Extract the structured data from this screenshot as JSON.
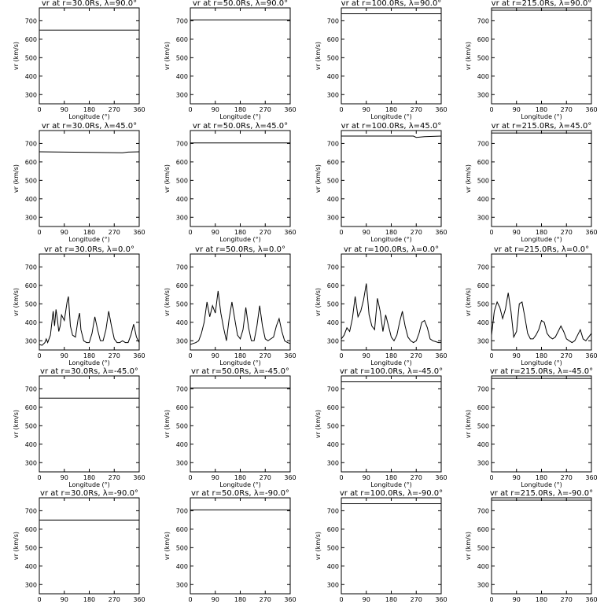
{
  "chart_data": {
    "type": "line",
    "rows": 5,
    "cols": 4,
    "common": {
      "xlabel": "Longitude (°)",
      "ylabel": "vr (km/s)",
      "xlim": [
        0,
        360
      ],
      "ylim": [
        250,
        770
      ],
      "xticks": [
        0,
        90,
        180,
        270,
        360
      ],
      "xtick_labels": [
        "0",
        "90",
        "180",
        "270",
        "360"
      ],
      "yticks": [
        300,
        400,
        500,
        600,
        700
      ],
      "ytick_labels": [
        "300",
        "400",
        "500",
        "600",
        "700"
      ],
      "grid": false,
      "line_color": "#000000"
    },
    "panels": [
      {
        "title": "vr at r=30.0Rs, λ=90.0°",
        "x": [
          0,
          360
        ],
        "y": [
          650,
          650
        ]
      },
      {
        "title": "vr at r=50.0Rs, λ=90.0°",
        "x": [
          0,
          360
        ],
        "y": [
          705,
          705
        ]
      },
      {
        "title": "vr at r=100.0Rs, λ=90.0°",
        "x": [
          0,
          360
        ],
        "y": [
          738,
          738
        ]
      },
      {
        "title": "vr at r=215.0Rs, λ=90.0°",
        "x": [
          0,
          360
        ],
        "y": [
          757,
          757
        ]
      },
      {
        "title": "vr at r=30.0Rs, λ=45.0°",
        "x": [
          0,
          300,
          320,
          360
        ],
        "y": [
          655,
          650,
          653,
          655
        ]
      },
      {
        "title": "vr at r=50.0Rs, λ=45.0°",
        "x": [
          0,
          360
        ],
        "y": [
          703,
          703
        ]
      },
      {
        "title": "vr at r=100.0Rs, λ=45.0°",
        "x": [
          0,
          260,
          270,
          300,
          360
        ],
        "y": [
          740,
          740,
          733,
          737,
          740
        ]
      },
      {
        "title": "vr at r=215.0Rs, λ=45.0°",
        "x": [
          0,
          360
        ],
        "y": [
          757,
          757
        ]
      },
      {
        "title": "vr at r=30.0Rs, λ=0.0°",
        "x": [
          0,
          10,
          20,
          25,
          30,
          40,
          50,
          55,
          60,
          65,
          70,
          75,
          80,
          90,
          100,
          105,
          112,
          120,
          130,
          140,
          145,
          150,
          160,
          170,
          180,
          190,
          200,
          210,
          220,
          230,
          240,
          250,
          260,
          270,
          280,
          290,
          300,
          310,
          320,
          330,
          340,
          350,
          360
        ],
        "y": [
          280,
          275,
          290,
          310,
          290,
          330,
          460,
          380,
          470,
          420,
          350,
          380,
          440,
          410,
          510,
          540,
          380,
          330,
          320,
          420,
          450,
          360,
          300,
          290,
          290,
          340,
          430,
          360,
          300,
          300,
          360,
          460,
          380,
          310,
          290,
          290,
          300,
          290,
          290,
          330,
          390,
          320,
          290
        ]
      },
      {
        "title": "vr at r=50.0Rs, λ=0.0°",
        "x": [
          0,
          10,
          20,
          30,
          40,
          50,
          60,
          70,
          80,
          90,
          100,
          110,
          120,
          130,
          140,
          150,
          160,
          170,
          180,
          190,
          200,
          210,
          220,
          230,
          240,
          250,
          260,
          270,
          280,
          290,
          300,
          310,
          320,
          330,
          340,
          350,
          360
        ],
        "y": [
          280,
          285,
          290,
          300,
          340,
          400,
          510,
          430,
          490,
          450,
          570,
          450,
          370,
          300,
          420,
          510,
          420,
          330,
          310,
          360,
          480,
          370,
          300,
          300,
          380,
          490,
          380,
          310,
          300,
          310,
          320,
          380,
          420,
          350,
          300,
          290,
          285
        ]
      },
      {
        "title": "vr at r=100.0Rs, λ=0.0°",
        "x": [
          0,
          10,
          20,
          30,
          40,
          50,
          60,
          70,
          80,
          90,
          100,
          110,
          120,
          130,
          140,
          150,
          160,
          170,
          180,
          190,
          200,
          210,
          220,
          230,
          240,
          250,
          260,
          270,
          280,
          290,
          300,
          310,
          320,
          330,
          340,
          350,
          360
        ],
        "y": [
          310,
          330,
          370,
          350,
          420,
          540,
          430,
          460,
          520,
          610,
          440,
          380,
          360,
          530,
          460,
          350,
          440,
          380,
          320,
          300,
          330,
          400,
          460,
          380,
          320,
          300,
          290,
          300,
          340,
          400,
          410,
          370,
          310,
          300,
          295,
          290,
          290
        ]
      },
      {
        "title": "vr at r=215.0Rs, λ=0.0°",
        "x": [
          0,
          10,
          20,
          30,
          40,
          50,
          60,
          70,
          80,
          90,
          100,
          110,
          120,
          130,
          140,
          150,
          160,
          170,
          180,
          190,
          200,
          210,
          220,
          230,
          240,
          250,
          260,
          270,
          280,
          290,
          300,
          310,
          320,
          330,
          340,
          350,
          360
        ],
        "y": [
          330,
          460,
          510,
          480,
          420,
          470,
          560,
          460,
          320,
          350,
          500,
          510,
          430,
          340,
          310,
          310,
          330,
          360,
          410,
          400,
          340,
          320,
          310,
          320,
          350,
          380,
          350,
          310,
          300,
          290,
          300,
          330,
          360,
          310,
          300,
          320,
          340
        ]
      },
      {
        "title": "vr at r=30.0Rs, λ=-45.0°",
        "x": [
          0,
          360
        ],
        "y": [
          650,
          650
        ]
      },
      {
        "title": "vr at r=50.0Rs, λ=-45.0°",
        "x": [
          0,
          360
        ],
        "y": [
          705,
          705
        ]
      },
      {
        "title": "vr at r=100.0Rs, λ=-45.0°",
        "x": [
          0,
          360
        ],
        "y": [
          738,
          738
        ]
      },
      {
        "title": "vr at r=215.0Rs, λ=-45.0°",
        "x": [
          0,
          360
        ],
        "y": [
          757,
          757
        ]
      },
      {
        "title": "vr at r=30.0Rs, λ=-90.0°",
        "x": [
          0,
          360
        ],
        "y": [
          650,
          650
        ]
      },
      {
        "title": "vr at r=50.0Rs, λ=-90.0°",
        "x": [
          0,
          360
        ],
        "y": [
          705,
          705
        ]
      },
      {
        "title": "vr at r=100.0Rs, λ=-90.0°",
        "x": [
          0,
          360
        ],
        "y": [
          738,
          738
        ]
      },
      {
        "title": "vr at r=215.0Rs, λ=-90.0°",
        "x": [
          0,
          360
        ],
        "y": [
          757,
          757
        ]
      }
    ]
  }
}
